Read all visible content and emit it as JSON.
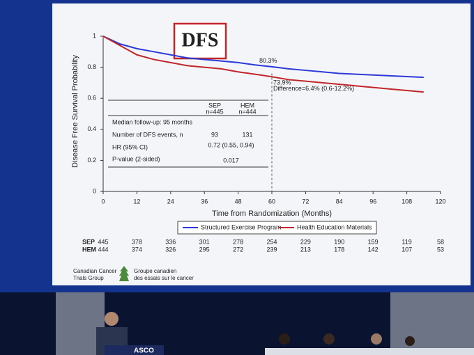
{
  "chart_data": {
    "type": "line",
    "title": "DFS",
    "xlabel": "Time from Randomization (Months)",
    "ylabel": "Disease Free Survival Probability",
    "x": [
      0,
      6,
      12,
      18,
      24,
      30,
      36,
      42,
      48,
      54,
      60,
      66,
      72,
      78,
      84,
      90,
      96,
      102,
      108,
      114
    ],
    "xlim": [
      0,
      120
    ],
    "xticks": [
      0,
      12,
      24,
      36,
      48,
      60,
      72,
      84,
      96,
      108,
      120
    ],
    "ylim": [
      0,
      1
    ],
    "yticks": [
      0,
      0.2,
      0.4,
      0.6,
      0.8,
      1
    ],
    "reference_x": 60,
    "series": [
      {
        "name": "Structured Exercise Program",
        "color": "#2a3ad6",
        "values": [
          1,
          0.95,
          0.92,
          0.9,
          0.88,
          0.86,
          0.85,
          0.84,
          0.83,
          0.815,
          0.803,
          0.79,
          0.78,
          0.77,
          0.76,
          0.755,
          0.75,
          0.745,
          0.74,
          0.735
        ]
      },
      {
        "name": "Health Education Materials",
        "color": "#c0262a",
        "values": [
          1,
          0.94,
          0.88,
          0.85,
          0.83,
          0.81,
          0.8,
          0.79,
          0.77,
          0.755,
          0.739,
          0.72,
          0.71,
          0.7,
          0.69,
          0.68,
          0.67,
          0.66,
          0.65,
          0.64
        ]
      }
    ],
    "annotations": [
      "80.3%",
      "73.9%",
      "Difference=6.4% (0.6-12.2%)"
    ],
    "table": {
      "columns": [
        {
          "name": "SEP",
          "n": "n=445"
        },
        {
          "name": "HEM",
          "n": "n=444"
        }
      ],
      "rows": [
        {
          "label": "Median follow-up: 95 months"
        },
        {
          "label": "Number of DFS events, n",
          "values": [
            93,
            131
          ]
        },
        {
          "label": "HR (95% CI)",
          "value": "0.72 (0.55, 0.94)"
        },
        {
          "label": "P-value (2-sided)",
          "value": "0.017"
        }
      ]
    },
    "risk_table": [
      {
        "label": "SEP",
        "values": [
          445,
          378,
          336,
          301,
          278,
          254,
          229,
          190,
          159,
          119,
          58
        ]
      },
      {
        "label": "HEM",
        "values": [
          444,
          374,
          326,
          295,
          272,
          239,
          213,
          178,
          142,
          107,
          53
        ]
      }
    ]
  },
  "logo": {
    "en": [
      "Canadian Cancer",
      "Trials Group"
    ],
    "fr": [
      "Groupe canadien",
      "des essais sur le cancer"
    ]
  },
  "podium": "ASCO"
}
